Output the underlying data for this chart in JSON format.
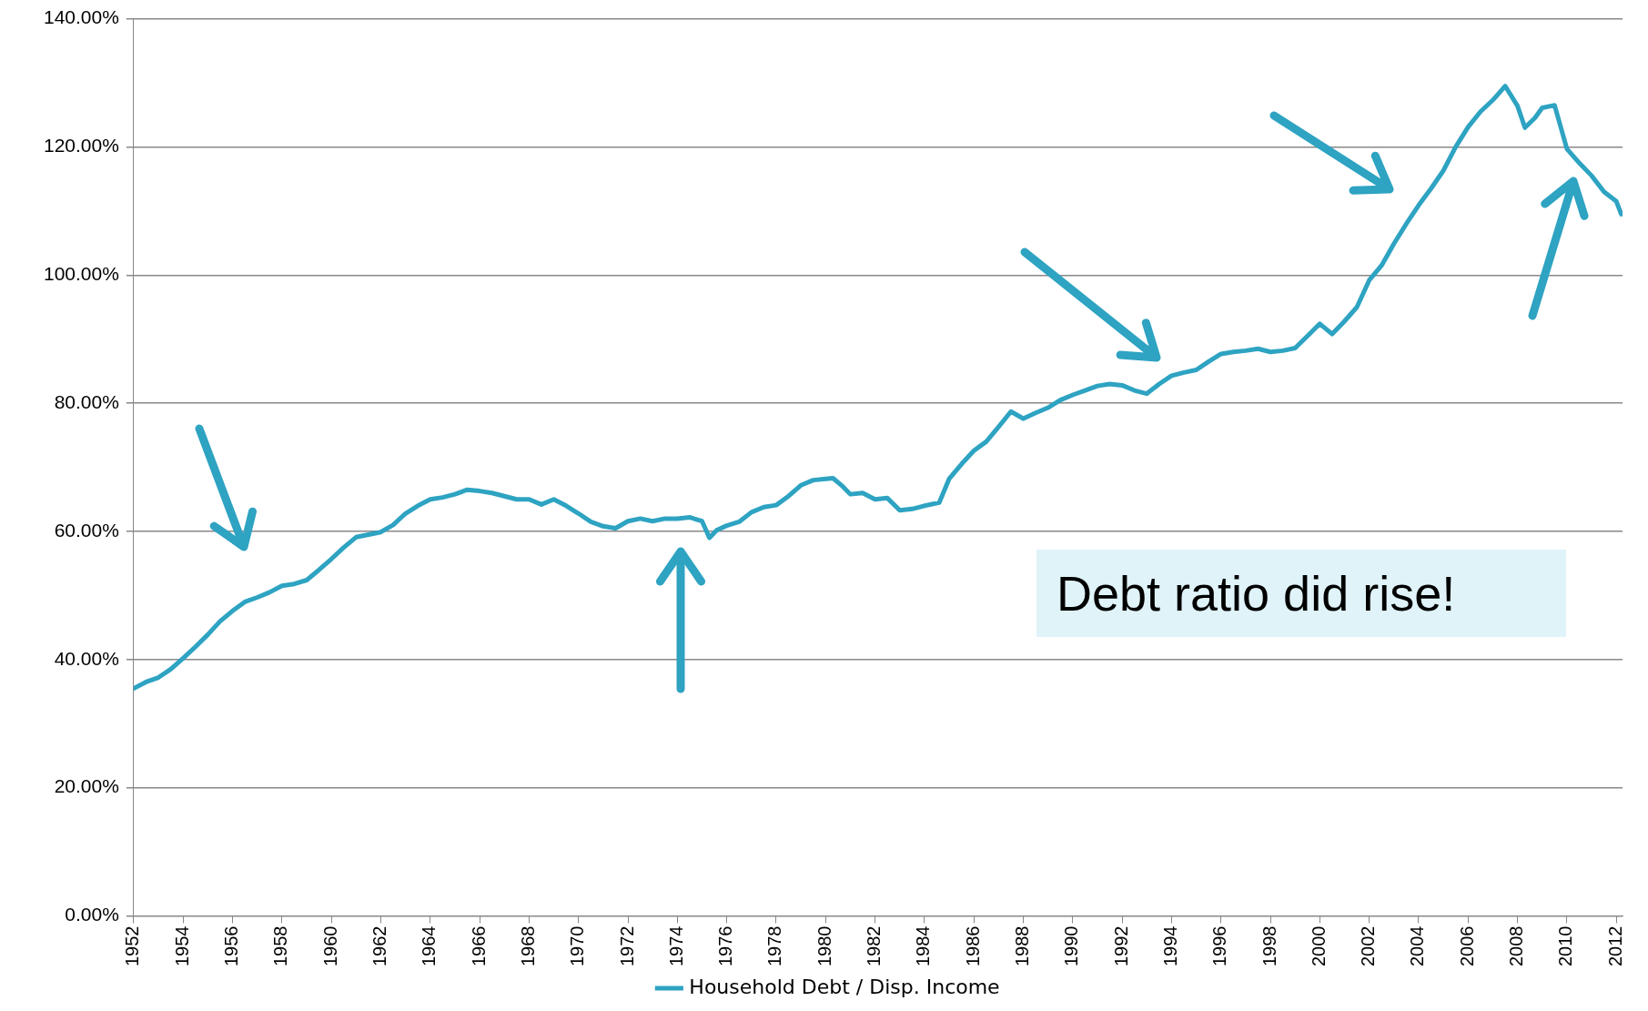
{
  "chart_data": {
    "type": "line",
    "annotations": [
      "Debt ratio did rise!"
    ],
    "x": [
      1952,
      1952.5,
      1953,
      1953.5,
      1954,
      1954.5,
      1955,
      1955.5,
      1956,
      1956.5,
      1957,
      1957.5,
      1958,
      1958.5,
      1959,
      1959.5,
      1960,
      1960.5,
      1961,
      1961.5,
      1962,
      1962.5,
      1963,
      1963.5,
      1964,
      1964.5,
      1965,
      1965.5,
      1966,
      1966.5,
      1967,
      1967.5,
      1968,
      1968.5,
      1969,
      1969.5,
      1970,
      1970.5,
      1971,
      1971.5,
      1972,
      1972.5,
      1973,
      1973.5,
      1974,
      1974.5,
      1975,
      1975.3,
      1975.6,
      1976,
      1976.5,
      1977,
      1977.5,
      1978,
      1978.5,
      1979,
      1979.5,
      1980,
      1980.3,
      1980.7,
      1981,
      1981.5,
      1982,
      1982.5,
      1983,
      1983.5,
      1984,
      1984.6,
      1985,
      1985.5,
      1986,
      1986.5,
      1987,
      1987.5,
      1988,
      1988.5,
      1989,
      1989.5,
      1990,
      1990.5,
      1991,
      1991.5,
      1992,
      1992.5,
      1993,
      1993.5,
      1994,
      1994.5,
      1995,
      1995.5,
      1996,
      1996.5,
      1997,
      1997.5,
      1998,
      1998.5,
      1999,
      1999.5,
      2000,
      2000.5,
      2001,
      2001.5,
      2002,
      2002.5,
      2003,
      2003.5,
      2004,
      2004.5,
      2005,
      2005.5,
      2006,
      2006.5,
      2007,
      2007.5,
      2008,
      2008.3,
      2008.7,
      2009,
      2009.5,
      2010,
      2010.5,
      2011,
      2011.5,
      2012,
      2012.2
    ],
    "series": [
      {
        "name": "Household Debt / Disp. Income",
        "color": "#2ea3c2",
        "values": [
          35.5,
          36.5,
          37.2,
          38.5,
          40.2,
          42,
          43.9,
          46,
          47.6,
          49,
          49.7,
          50.5,
          51.5,
          51.8,
          52.4,
          54,
          55.7,
          57.5,
          59.1,
          59.5,
          59.9,
          61,
          62.8,
          64,
          65,
          65.3,
          65.8,
          66.5,
          66.3,
          66,
          65.5,
          65,
          65,
          64.2,
          65,
          64,
          62.8,
          61.5,
          60.8,
          60.5,
          61.6,
          62,
          61.6,
          62,
          62,
          62.2,
          61.6,
          59,
          60.2,
          60.9,
          61.5,
          63,
          63.8,
          64.1,
          65.5,
          67.2,
          68,
          68.2,
          68.3,
          67,
          65.8,
          66,
          65,
          65.2,
          63.3,
          63.5,
          64,
          64.5,
          68.2,
          70.5,
          72.6,
          74,
          76.3,
          78.7,
          77.6,
          78.5,
          79.3,
          80.5,
          81.3,
          82,
          82.7,
          83,
          82.8,
          82,
          81.5,
          83,
          84.3,
          84.8,
          85.2,
          86.5,
          87.7,
          88,
          88.2,
          88.5,
          88,
          88.2,
          88.6,
          90.5,
          92.4,
          90.8,
          92.8,
          95,
          99.2,
          101.5,
          104.9,
          108,
          110.9,
          113.5,
          116.3,
          120,
          123.1,
          125.5,
          127.3,
          129.5,
          126.4,
          123,
          124.5,
          126.1,
          126.5,
          119.7,
          117.5,
          115.5,
          113,
          111.5,
          109.5
        ]
      }
    ],
    "xlim": [
      1952,
      2012.25
    ],
    "xticks": [
      1952,
      1954,
      1956,
      1958,
      1960,
      1962,
      1964,
      1966,
      1968,
      1970,
      1972,
      1974,
      1976,
      1978,
      1980,
      1982,
      1984,
      1986,
      1988,
      1990,
      1992,
      1994,
      1996,
      1998,
      2000,
      2002,
      2004,
      2006,
      2008,
      2010,
      2012
    ],
    "ylim": [
      0,
      140
    ],
    "yticks": [
      {
        "value": 0,
        "label": "0.00%"
      },
      {
        "value": 20,
        "label": "20.00%"
      },
      {
        "value": 40,
        "label": "40.00%"
      },
      {
        "value": 60,
        "label": "60.00%"
      },
      {
        "value": 80,
        "label": "80.00%"
      },
      {
        "value": 100,
        "label": "100.00%"
      },
      {
        "value": 120,
        "label": "120.00%"
      },
      {
        "value": 140,
        "label": "140.00%"
      }
    ],
    "grid": "y",
    "legend": "bottom",
    "marker": "none",
    "line_style": "solid"
  }
}
